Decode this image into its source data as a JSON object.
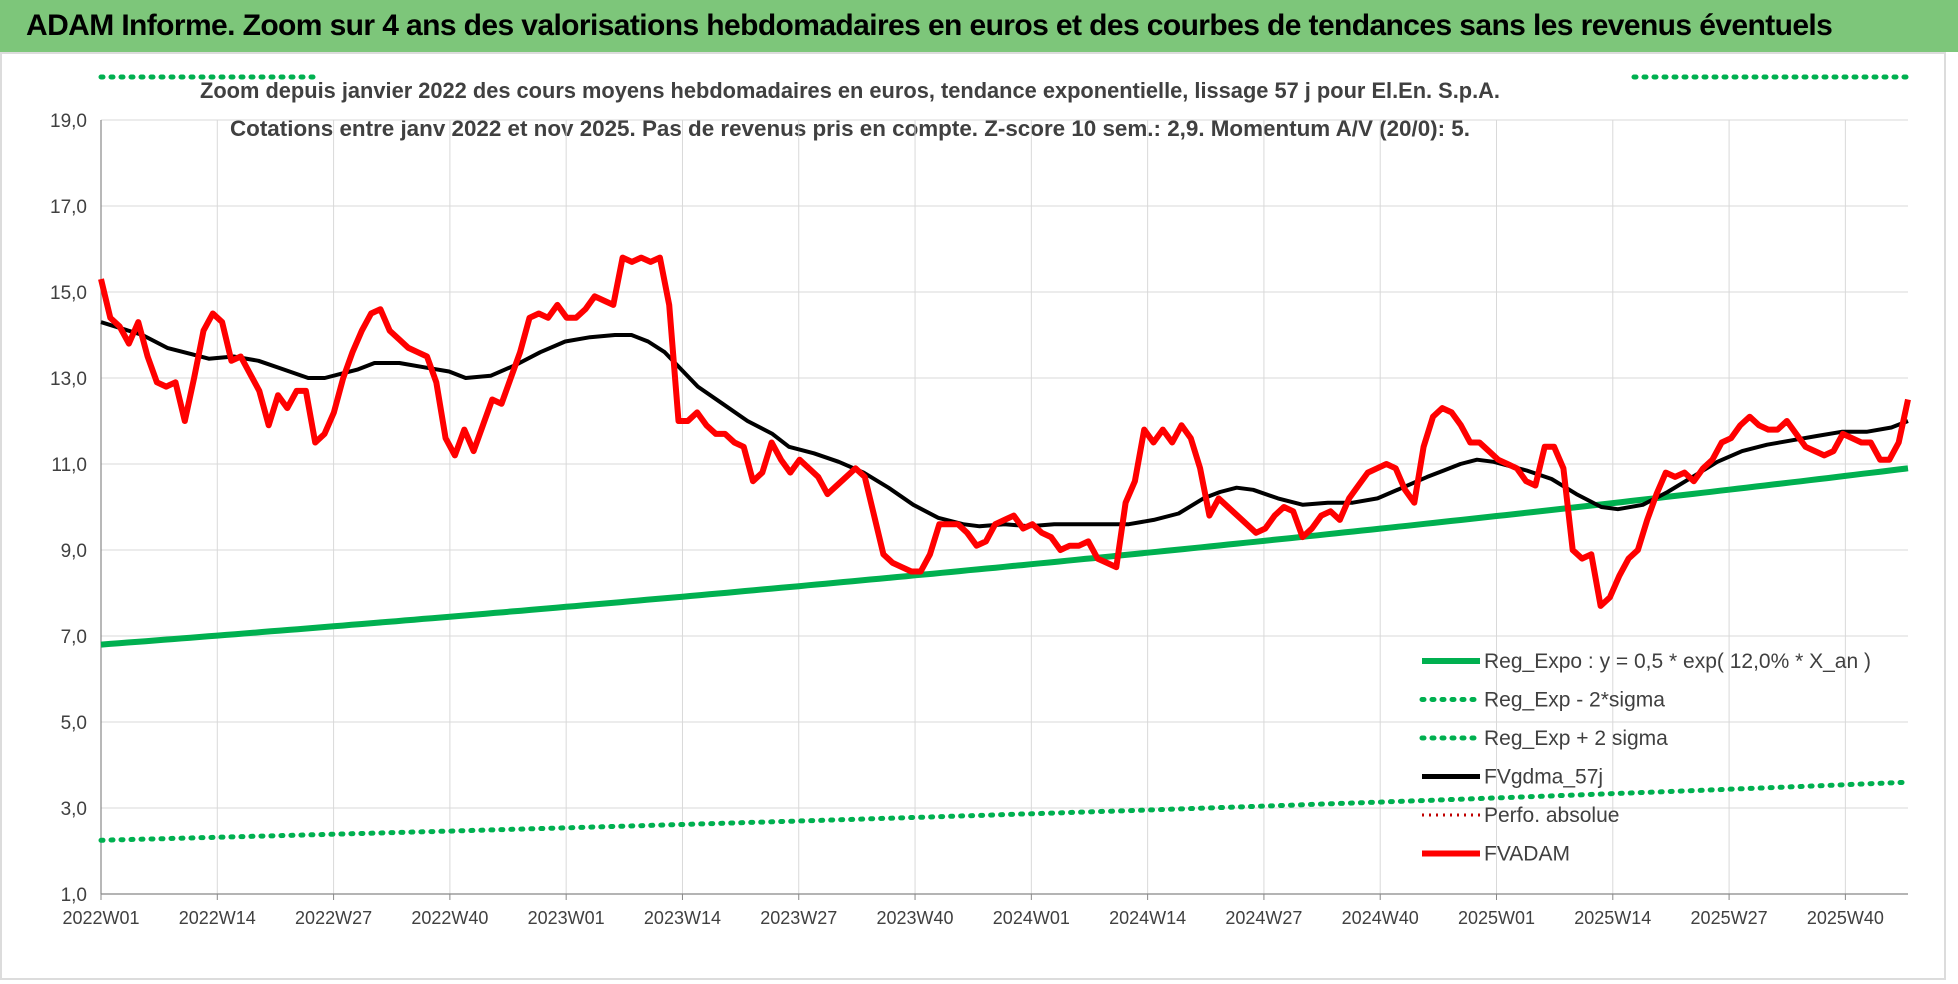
{
  "banner": {
    "title": "ADAM Informe. Zoom sur 4 ans des valorisations hebdomadaires en euros et des courbes de tendances sans les revenus éventuels"
  },
  "colors": {
    "banner_bg": "#7dc67a",
    "reg_expo": "#00b050",
    "fvadam": "#ff0000",
    "fvgdma": "#000000",
    "perfo": "#c00000",
    "grid": "#d9d9d9"
  },
  "chart_data": {
    "type": "line",
    "title": "Zoom depuis janvier 2022 des cours moyens hebdomadaires en euros, tendance exponentielle, lissage 57 j pour El.En. S.p.A.",
    "subtitle": "Cotations entre janv 2022 et nov 2025. Pas de revenus pris en compte. Z-score 10 sem.: 2,9. Momentum A/V (20/0): 5.",
    "ylim": [
      1,
      19
    ],
    "yticks": [
      "1,0",
      "3,0",
      "5,0",
      "7,0",
      "9,0",
      "11,0",
      "13,0",
      "15,0",
      "17,0",
      "19,0"
    ],
    "yticks_values": [
      1,
      3,
      5,
      7,
      9,
      11,
      13,
      15,
      17,
      19
    ],
    "x_count": 203,
    "xticks": [
      {
        "i": 0,
        "label": "2022W01"
      },
      {
        "i": 13,
        "label": "2022W14"
      },
      {
        "i": 26,
        "label": "2022W27"
      },
      {
        "i": 39,
        "label": "2022W40"
      },
      {
        "i": 52,
        "label": "2023W01"
      },
      {
        "i": 65,
        "label": "2023W14"
      },
      {
        "i": 78,
        "label": "2023W27"
      },
      {
        "i": 91,
        "label": "2023W40"
      },
      {
        "i": 104,
        "label": "2024W01"
      },
      {
        "i": 117,
        "label": "2024W14"
      },
      {
        "i": 130,
        "label": "2024W27"
      },
      {
        "i": 143,
        "label": "2024W40"
      },
      {
        "i": 156,
        "label": "2025W01"
      },
      {
        "i": 169,
        "label": "2025W14"
      },
      {
        "i": 182,
        "label": "2025W27"
      },
      {
        "i": 195,
        "label": "2025W40"
      }
    ],
    "legend_position": "bottom-right",
    "series": [
      {
        "name": "Reg_Expo : y = 0,5 * exp( 12,0% *  X_an )",
        "style": "solid-green",
        "start": 6.8,
        "end": 10.9
      },
      {
        "name": "Reg_Exp - 2*sigma",
        "style": "dotted-green",
        "start": 2.25,
        "end": 3.6
      },
      {
        "name": "Reg_Exp + 2 sigma",
        "style": "dotted-green",
        "start": 20.0,
        "end": 20.0
      },
      {
        "name": "FVgdma_57j",
        "style": "solid-black",
        "points": [
          [
            0,
            14.3
          ],
          [
            5,
            14.0
          ],
          [
            8,
            13.7
          ],
          [
            11,
            13.55
          ],
          [
            13,
            13.45
          ],
          [
            16,
            13.5
          ],
          [
            19,
            13.4
          ],
          [
            22,
            13.2
          ],
          [
            25,
            13.0
          ],
          [
            27,
            13.0
          ],
          [
            29,
            13.1
          ],
          [
            31,
            13.2
          ],
          [
            33,
            13.35
          ],
          [
            36,
            13.35
          ],
          [
            39,
            13.25
          ],
          [
            42,
            13.15
          ],
          [
            44,
            13.0
          ],
          [
            47,
            13.05
          ],
          [
            50,
            13.3
          ],
          [
            53,
            13.6
          ],
          [
            56,
            13.85
          ],
          [
            59,
            13.95
          ],
          [
            62,
            14.0
          ],
          [
            64,
            14.0
          ],
          [
            66,
            13.85
          ],
          [
            68,
            13.6
          ],
          [
            70,
            13.2
          ],
          [
            72,
            12.8
          ],
          [
            75,
            12.4
          ],
          [
            78,
            12.0
          ],
          [
            81,
            11.7
          ],
          [
            83,
            11.4
          ],
          [
            86,
            11.25
          ],
          [
            89,
            11.05
          ],
          [
            92,
            10.8
          ],
          [
            95,
            10.45
          ],
          [
            98,
            10.05
          ],
          [
            101,
            9.75
          ],
          [
            104,
            9.6
          ],
          [
            106,
            9.55
          ],
          [
            109,
            9.6
          ],
          [
            112,
            9.55
          ],
          [
            115,
            9.6
          ],
          [
            118,
            9.6
          ],
          [
            121,
            9.6
          ],
          [
            124,
            9.6
          ],
          [
            127,
            9.7
          ],
          [
            130,
            9.85
          ],
          [
            133,
            10.2
          ],
          [
            135,
            10.35
          ],
          [
            137,
            10.45
          ],
          [
            139,
            10.4
          ],
          [
            142,
            10.2
          ],
          [
            145,
            10.05
          ],
          [
            148,
            10.1
          ],
          [
            151,
            10.1
          ],
          [
            154,
            10.2
          ],
          [
            157,
            10.45
          ],
          [
            160,
            10.7
          ],
          [
            162,
            10.85
          ],
          [
            164,
            11.0
          ],
          [
            166,
            11.1
          ],
          [
            168,
            11.05
          ],
          [
            170,
            10.95
          ],
          [
            172,
            10.85
          ],
          [
            175,
            10.65
          ],
          [
            178,
            10.3
          ],
          [
            181,
            10.0
          ],
          [
            183,
            9.95
          ],
          [
            186,
            10.05
          ],
          [
            189,
            10.35
          ],
          [
            192,
            10.7
          ],
          [
            195,
            11.05
          ],
          [
            198,
            11.3
          ],
          [
            201,
            11.45
          ],
          [
            204,
            11.55
          ],
          [
            207,
            11.65
          ],
          [
            210,
            11.75
          ],
          [
            213,
            11.75
          ],
          [
            216,
            11.85
          ],
          [
            218,
            12.0
          ]
        ]
      },
      {
        "name": "Perfo. absolue",
        "style": "dotted-darkred"
      },
      {
        "name": "FVADAM",
        "style": "solid-red",
        "points": [
          [
            0,
            15.3
          ],
          [
            1,
            14.4
          ],
          [
            2,
            14.2
          ],
          [
            3,
            13.8
          ],
          [
            4,
            14.3
          ],
          [
            5,
            13.5
          ],
          [
            6,
            12.9
          ],
          [
            7,
            12.8
          ],
          [
            8,
            12.9
          ],
          [
            9,
            12.0
          ],
          [
            10,
            13.0
          ],
          [
            11,
            14.1
          ],
          [
            12,
            14.5
          ],
          [
            13,
            14.3
          ],
          [
            14,
            13.4
          ],
          [
            15,
            13.5
          ],
          [
            16,
            13.1
          ],
          [
            17,
            12.7
          ],
          [
            18,
            11.9
          ],
          [
            19,
            12.6
          ],
          [
            20,
            12.3
          ],
          [
            21,
            12.7
          ],
          [
            22,
            12.7
          ],
          [
            23,
            11.5
          ],
          [
            24,
            11.7
          ],
          [
            25,
            12.2
          ],
          [
            26,
            13.0
          ],
          [
            27,
            13.6
          ],
          [
            28,
            14.1
          ],
          [
            29,
            14.5
          ],
          [
            30,
            14.6
          ],
          [
            31,
            14.1
          ],
          [
            32,
            13.9
          ],
          [
            33,
            13.7
          ],
          [
            34,
            13.6
          ],
          [
            35,
            13.5
          ],
          [
            36,
            12.9
          ],
          [
            37,
            11.6
          ],
          [
            38,
            11.2
          ],
          [
            39,
            11.8
          ],
          [
            40,
            11.3
          ],
          [
            41,
            11.9
          ],
          [
            42,
            12.5
          ],
          [
            43,
            12.4
          ],
          [
            44,
            13.0
          ],
          [
            45,
            13.6
          ],
          [
            46,
            14.4
          ],
          [
            47,
            14.5
          ],
          [
            48,
            14.4
          ],
          [
            49,
            14.7
          ],
          [
            50,
            14.4
          ],
          [
            51,
            14.4
          ],
          [
            52,
            14.6
          ],
          [
            53,
            14.9
          ],
          [
            54,
            14.8
          ],
          [
            55,
            14.7
          ],
          [
            56,
            15.8
          ],
          [
            57,
            15.7
          ],
          [
            58,
            15.8
          ],
          [
            59,
            15.7
          ],
          [
            60,
            15.8
          ],
          [
            61,
            14.7
          ],
          [
            62,
            12.0
          ],
          [
            63,
            12.0
          ],
          [
            64,
            12.2
          ],
          [
            65,
            11.9
          ],
          [
            66,
            11.7
          ],
          [
            67,
            11.7
          ],
          [
            68,
            11.5
          ],
          [
            69,
            11.4
          ],
          [
            70,
            10.6
          ],
          [
            71,
            10.8
          ],
          [
            72,
            11.5
          ],
          [
            73,
            11.1
          ],
          [
            74,
            10.8
          ],
          [
            75,
            11.1
          ],
          [
            76,
            10.9
          ],
          [
            77,
            10.7
          ],
          [
            78,
            10.3
          ],
          [
            79,
            10.5
          ],
          [
            80,
            10.7
          ],
          [
            81,
            10.9
          ],
          [
            82,
            10.7
          ],
          [
            83,
            9.8
          ],
          [
            84,
            8.9
          ],
          [
            85,
            8.7
          ],
          [
            86,
            8.6
          ],
          [
            87,
            8.5
          ],
          [
            88,
            8.5
          ],
          [
            89,
            8.9
          ],
          [
            90,
            9.6
          ],
          [
            91,
            9.6
          ],
          [
            92,
            9.6
          ],
          [
            93,
            9.4
          ],
          [
            94,
            9.1
          ],
          [
            95,
            9.2
          ],
          [
            96,
            9.6
          ],
          [
            97,
            9.7
          ],
          [
            98,
            9.8
          ],
          [
            99,
            9.5
          ],
          [
            100,
            9.6
          ],
          [
            101,
            9.4
          ],
          [
            102,
            9.3
          ],
          [
            103,
            9.0
          ],
          [
            104,
            9.1
          ],
          [
            105,
            9.1
          ],
          [
            106,
            9.2
          ],
          [
            107,
            8.8
          ],
          [
            108,
            8.7
          ],
          [
            109,
            8.6
          ],
          [
            110,
            10.1
          ],
          [
            111,
            10.6
          ],
          [
            112,
            11.8
          ],
          [
            113,
            11.5
          ],
          [
            114,
            11.8
          ],
          [
            115,
            11.5
          ],
          [
            116,
            11.9
          ],
          [
            117,
            11.6
          ],
          [
            118,
            10.9
          ],
          [
            119,
            9.8
          ],
          [
            120,
            10.2
          ],
          [
            121,
            10.0
          ],
          [
            122,
            9.8
          ],
          [
            123,
            9.6
          ],
          [
            124,
            9.4
          ],
          [
            125,
            9.5
          ],
          [
            126,
            9.8
          ],
          [
            127,
            10.0
          ],
          [
            128,
            9.9
          ],
          [
            129,
            9.3
          ],
          [
            130,
            9.5
          ],
          [
            131,
            9.8
          ],
          [
            132,
            9.9
          ],
          [
            133,
            9.7
          ],
          [
            134,
            10.2
          ],
          [
            135,
            10.5
          ],
          [
            136,
            10.8
          ],
          [
            137,
            10.9
          ],
          [
            138,
            11.0
          ],
          [
            139,
            10.9
          ],
          [
            140,
            10.4
          ],
          [
            141,
            10.1
          ],
          [
            142,
            11.4
          ],
          [
            143,
            12.1
          ],
          [
            144,
            12.3
          ],
          [
            145,
            12.2
          ],
          [
            146,
            11.9
          ],
          [
            147,
            11.5
          ],
          [
            148,
            11.5
          ],
          [
            149,
            11.3
          ],
          [
            150,
            11.1
          ],
          [
            151,
            11.0
          ],
          [
            152,
            10.9
          ],
          [
            153,
            10.6
          ],
          [
            154,
            10.5
          ],
          [
            155,
            11.4
          ],
          [
            156,
            11.4
          ],
          [
            157,
            10.9
          ],
          [
            158,
            9.0
          ],
          [
            159,
            8.8
          ],
          [
            160,
            8.9
          ],
          [
            161,
            7.7
          ],
          [
            162,
            7.9
          ],
          [
            163,
            8.4
          ],
          [
            164,
            8.8
          ],
          [
            165,
            9.0
          ],
          [
            166,
            9.7
          ],
          [
            167,
            10.3
          ],
          [
            168,
            10.8
          ],
          [
            169,
            10.7
          ],
          [
            170,
            10.8
          ],
          [
            171,
            10.6
          ],
          [
            172,
            10.9
          ],
          [
            173,
            11.1
          ],
          [
            174,
            11.5
          ],
          [
            175,
            11.6
          ],
          [
            176,
            11.9
          ],
          [
            177,
            12.1
          ],
          [
            178,
            11.9
          ],
          [
            179,
            11.8
          ],
          [
            180,
            11.8
          ],
          [
            181,
            12.0
          ],
          [
            182,
            11.7
          ],
          [
            183,
            11.4
          ],
          [
            184,
            11.3
          ],
          [
            185,
            11.2
          ],
          [
            186,
            11.3
          ],
          [
            187,
            11.7
          ],
          [
            188,
            11.6
          ],
          [
            189,
            11.5
          ],
          [
            190,
            11.5
          ],
          [
            191,
            11.1
          ],
          [
            192,
            11.1
          ],
          [
            193,
            11.5
          ],
          [
            194,
            12.5
          ]
        ]
      }
    ]
  }
}
